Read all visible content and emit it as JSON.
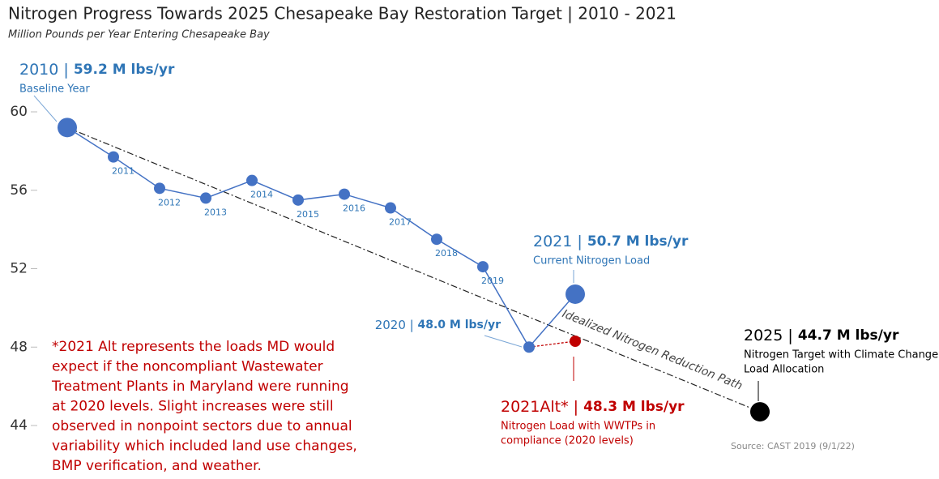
{
  "chart_data": {
    "type": "line",
    "title": "Nitrogen Progress Towards 2025 Chesapeake Bay Restoration Target | 2010 - 2021",
    "subtitle": "Million Pounds per Year Entering Chesapeake Bay",
    "x": [
      2010,
      2011,
      2012,
      2013,
      2014,
      2015,
      2016,
      2017,
      2018,
      2019,
      2020,
      2021
    ],
    "values": [
      59.2,
      57.7,
      56.1,
      55.6,
      56.5,
      55.5,
      55.8,
      55.1,
      53.5,
      52.1,
      48.0,
      50.7
    ],
    "value_labels": [
      "59.2 M lbs/yr",
      null,
      null,
      null,
      null,
      null,
      null,
      null,
      null,
      null,
      "48.0 M lbs/yr",
      "50.7 M lbs/yr"
    ],
    "notes": [
      [
        "Baseline Year"
      ],
      null,
      null,
      null,
      null,
      null,
      null,
      null,
      null,
      null,
      null,
      [
        "Current Nitrogen Load"
      ]
    ],
    "separator": " | ",
    "color": "#4472c4",
    "alt": {
      "label": "2021Alt*",
      "x": 2021,
      "value": 48.3,
      "value_label": "48.3 M lbs/yr",
      "note": [
        "Nitrogen Load with WWTPs in",
        "compliance (2020 levels)"
      ],
      "color": "#c00000"
    },
    "target": {
      "x": 2025,
      "value": 44.7,
      "value_label": "44.7 M lbs/yr",
      "note": [
        "Nitrogen Target with Climate Change",
        "Load Allocation"
      ],
      "color": "#000000"
    },
    "path_label": "Idealized Nitrogen Reduction Path",
    "footnote": [
      "*2021 Alt represents the loads MD would",
      "expect if the noncompliant Wastewater",
      "Treatment Plants in Maryland were running",
      "at 2020 levels. Slight increases were still",
      "observed in nonpoint sectors due to annual",
      "variability which included land use changes,",
      "BMP verification, and weather."
    ],
    "source": "Source: CAST 2019 (9/1/22)",
    "xlim": [
      2010,
      2025
    ],
    "ylim": [
      44,
      60
    ],
    "yticks": [
      44,
      48,
      52,
      56,
      60
    ]
  }
}
